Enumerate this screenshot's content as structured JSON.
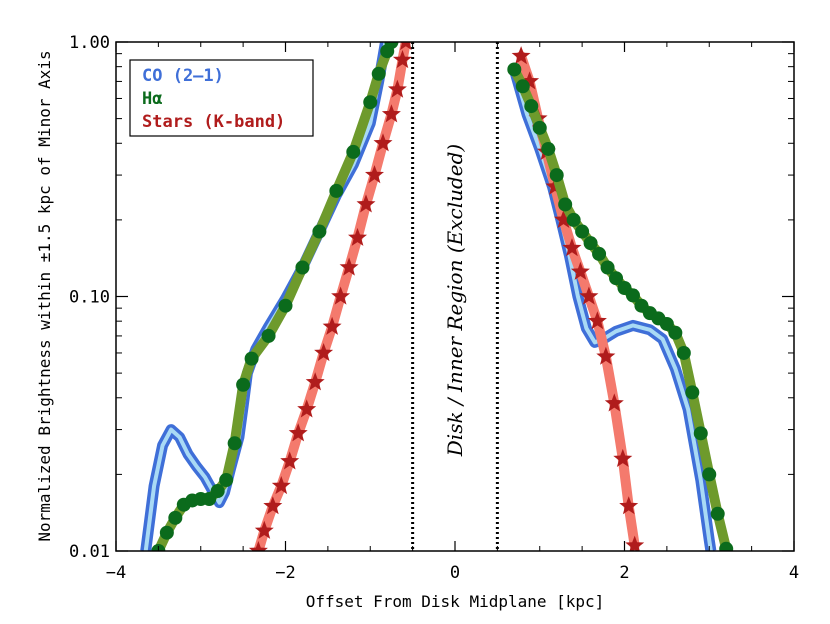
{
  "chart_data": {
    "type": "line",
    "title": "",
    "xlabel": "Offset From Disk Midplane [kpc]",
    "ylabel": "Normalized Brightness within ±1.5 kpc of Minor Axis",
    "xlim": [
      -4,
      4
    ],
    "ylim": [
      0.01,
      1.0
    ],
    "yscale": "log",
    "xticks": [
      -4,
      -2,
      0,
      2,
      4
    ],
    "xtick_labels": [
      "−4",
      "−2",
      "0",
      "2",
      "4"
    ],
    "yticks": [
      0.01,
      0.1,
      1.0
    ],
    "ytick_labels": [
      "0.01",
      "0.10",
      "1.00"
    ],
    "grid": false,
    "legend_position": "top-left",
    "excluded_region": {
      "x": [
        -0.5,
        0.5
      ],
      "label": "Disk / Inner Region (Excluded)"
    },
    "series": [
      {
        "name": "CO (2–1)",
        "color": "#3f6fd8",
        "inner_color": "#a9daf5",
        "marker": "none",
        "segments": [
          [
            [
              -3.65,
              0.01
            ],
            [
              -3.55,
              0.018
            ],
            [
              -3.45,
              0.026
            ],
            [
              -3.35,
              0.03
            ],
            [
              -3.25,
              0.028
            ],
            [
              -3.15,
              0.024
            ],
            [
              -3.05,
              0.0215
            ],
            [
              -2.95,
              0.0195
            ],
            [
              -2.85,
              0.017
            ],
            [
              -2.78,
              0.0155
            ],
            [
              -2.72,
              0.017
            ],
            [
              -2.65,
              0.021
            ],
            [
              -2.55,
              0.028
            ],
            [
              -2.5,
              0.037
            ],
            [
              -2.45,
              0.05
            ],
            [
              -2.35,
              0.062
            ],
            [
              -2.2,
              0.076
            ],
            [
              -2.0,
              0.098
            ],
            [
              -1.8,
              0.13
            ],
            [
              -1.6,
              0.18
            ],
            [
              -1.4,
              0.25
            ],
            [
              -1.2,
              0.33
            ],
            [
              -1.0,
              0.48
            ],
            [
              -0.9,
              0.7
            ],
            [
              -0.82,
              1.0
            ]
          ],
          [
            [
              0.7,
              0.78
            ],
            [
              0.85,
              0.52
            ],
            [
              1.0,
              0.38
            ],
            [
              1.15,
              0.27
            ],
            [
              1.25,
              0.2
            ],
            [
              1.35,
              0.145
            ],
            [
              1.45,
              0.1
            ],
            [
              1.55,
              0.075
            ],
            [
              1.65,
              0.066
            ],
            [
              1.75,
              0.068
            ],
            [
              1.9,
              0.073
            ],
            [
              2.1,
              0.077
            ],
            [
              2.3,
              0.074
            ],
            [
              2.45,
              0.068
            ],
            [
              2.6,
              0.052
            ],
            [
              2.75,
              0.036
            ],
            [
              2.9,
              0.019
            ],
            [
              3.0,
              0.011
            ],
            [
              3.02,
              0.01
            ]
          ]
        ]
      },
      {
        "name": "Hα",
        "color": "#0b6b1c",
        "line_color": "#6e9a2c",
        "marker": "circle",
        "segments": [
          [
            [
              -3.5,
              0.01
            ],
            [
              -3.4,
              0.0118
            ],
            [
              -3.3,
              0.0135
            ],
            [
              -3.2,
              0.0152
            ],
            [
              -3.1,
              0.0158
            ],
            [
              -3.0,
              0.016
            ],
            [
              -2.9,
              0.016
            ],
            [
              -2.8,
              0.0172
            ],
            [
              -2.7,
              0.019
            ],
            [
              -2.6,
              0.0265
            ],
            [
              -2.5,
              0.045
            ],
            [
              -2.4,
              0.057
            ],
            [
              -2.2,
              0.07
            ],
            [
              -2.0,
              0.092
            ],
            [
              -1.8,
              0.13
            ],
            [
              -1.6,
              0.18
            ],
            [
              -1.4,
              0.26
            ],
            [
              -1.2,
              0.37
            ],
            [
              -1.0,
              0.58
            ],
            [
              -0.9,
              0.75
            ],
            [
              -0.8,
              0.92
            ],
            [
              -0.75,
              1.0
            ]
          ],
          [
            [
              0.7,
              0.78
            ],
            [
              0.8,
              0.67
            ],
            [
              0.9,
              0.56
            ],
            [
              1.0,
              0.46
            ],
            [
              1.1,
              0.38
            ],
            [
              1.2,
              0.3
            ],
            [
              1.3,
              0.23
            ],
            [
              1.4,
              0.2
            ],
            [
              1.5,
              0.18
            ],
            [
              1.6,
              0.162
            ],
            [
              1.7,
              0.147
            ],
            [
              1.8,
              0.13
            ],
            [
              1.9,
              0.118
            ],
            [
              2.0,
              0.108
            ],
            [
              2.1,
              0.101
            ],
            [
              2.2,
              0.092
            ],
            [
              2.3,
              0.086
            ],
            [
              2.4,
              0.082
            ],
            [
              2.5,
              0.078
            ],
            [
              2.6,
              0.072
            ],
            [
              2.7,
              0.06
            ],
            [
              2.8,
              0.042
            ],
            [
              2.9,
              0.029
            ],
            [
              3.0,
              0.02
            ],
            [
              3.1,
              0.014
            ],
            [
              3.2,
              0.0102
            ]
          ]
        ]
      },
      {
        "name": "Stars (K-band)",
        "color": "#b01c1c",
        "line_color": "#f47a6d",
        "marker": "star",
        "segments": [
          [
            [
              -2.32,
              0.01
            ],
            [
              -2.25,
              0.012
            ],
            [
              -2.15,
              0.015
            ],
            [
              -2.05,
              0.018
            ],
            [
              -1.95,
              0.0225
            ],
            [
              -1.85,
              0.029
            ],
            [
              -1.75,
              0.036
            ],
            [
              -1.65,
              0.046
            ],
            [
              -1.55,
              0.06
            ],
            [
              -1.45,
              0.076
            ],
            [
              -1.35,
              0.1
            ],
            [
              -1.25,
              0.13
            ],
            [
              -1.15,
              0.17
            ],
            [
              -1.05,
              0.23
            ],
            [
              -0.95,
              0.3
            ],
            [
              -0.85,
              0.4
            ],
            [
              -0.75,
              0.52
            ],
            [
              -0.68,
              0.65
            ],
            [
              -0.62,
              0.85
            ],
            [
              -0.58,
              1.0
            ]
          ],
          [
            [
              0.78,
              0.88
            ],
            [
              0.88,
              0.7
            ],
            [
              0.98,
              0.5
            ],
            [
              1.08,
              0.37
            ],
            [
              1.18,
              0.27
            ],
            [
              1.28,
              0.2
            ],
            [
              1.38,
              0.155
            ],
            [
              1.48,
              0.125
            ],
            [
              1.58,
              0.1
            ],
            [
              1.68,
              0.08
            ],
            [
              1.78,
              0.058
            ],
            [
              1.88,
              0.038
            ],
            [
              1.98,
              0.023
            ],
            [
              2.05,
              0.015
            ],
            [
              2.12,
              0.0105
            ]
          ]
        ]
      }
    ]
  }
}
